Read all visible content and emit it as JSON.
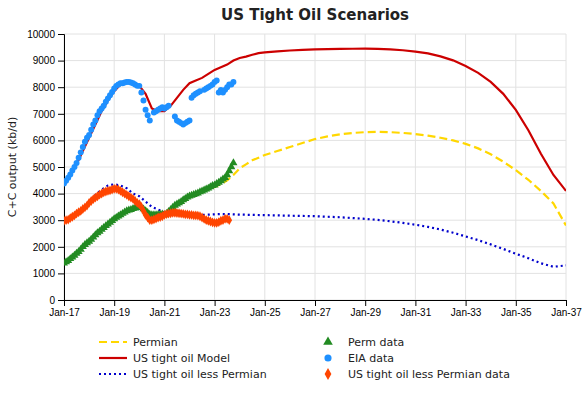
{
  "chart_data": {
    "type": "line",
    "title": "US Tight Oil Scenarios",
    "y_label": "C+C output (kb/d)",
    "xlim": [
      2017.0,
      2037.0
    ],
    "xticks": [
      {
        "value": 2017,
        "label": "Jan-17"
      },
      {
        "value": 2019,
        "label": "Jan-19"
      },
      {
        "value": 2021,
        "label": "Jan-21"
      },
      {
        "value": 2023,
        "label": "Jan-23"
      },
      {
        "value": 2025,
        "label": "Jan-25"
      },
      {
        "value": 2027,
        "label": "Jan-27"
      },
      {
        "value": 2029,
        "label": "Jan-29"
      },
      {
        "value": 2031,
        "label": "Jan-31"
      },
      {
        "value": 2033,
        "label": "Jan-33"
      },
      {
        "value": 2035,
        "label": "Jan-35"
      },
      {
        "value": 2037,
        "label": "Jan-37"
      }
    ],
    "ylim": [
      0,
      10000
    ],
    "yticks": [
      0,
      1000,
      2000,
      3000,
      4000,
      5000,
      6000,
      7000,
      8000,
      9000,
      10000
    ],
    "grid": true,
    "legend": "bottom",
    "series": [
      {
        "name": "Permian",
        "type": "line",
        "color": "#FFD700",
        "line_style": "dashed",
        "x": [
          2017.0,
          2017.25,
          2017.5,
          2017.75,
          2018.0,
          2018.25,
          2018.5,
          2018.75,
          2019.0,
          2019.25,
          2019.5,
          2019.75,
          2020.0,
          2020.25,
          2020.5,
          2020.75,
          2021.0,
          2021.25,
          2021.5,
          2021.75,
          2022.0,
          2022.25,
          2022.5,
          2022.75,
          2023.0,
          2023.25,
          2023.5,
          2023.75,
          2024.0,
          2024.25,
          2024.5,
          2024.75,
          2025.0,
          2025.5,
          2026.0,
          2026.5,
          2027.0,
          2027.5,
          2028.0,
          2028.5,
          2029.0,
          2029.5,
          2030.0,
          2030.5,
          2031.0,
          2031.5,
          2032.0,
          2032.5,
          2033.0,
          2033.5,
          2034.0,
          2034.5,
          2035.0,
          2035.5,
          2036.0,
          2036.5,
          2037.0
        ],
        "values": [
          1380,
          1550,
          1750,
          2000,
          2200,
          2450,
          2650,
          2850,
          3050,
          3200,
          3350,
          3450,
          3500,
          3450,
          3250,
          3100,
          3200,
          3350,
          3550,
          3700,
          3850,
          3950,
          4050,
          4150,
          4250,
          4350,
          4500,
          4700,
          4950,
          5100,
          5250,
          5350,
          5450,
          5600,
          5750,
          5900,
          6050,
          6150,
          6230,
          6280,
          6310,
          6320,
          6310,
          6280,
          6240,
          6180,
          6100,
          6000,
          5870,
          5700,
          5480,
          5200,
          4880,
          4520,
          4100,
          3630,
          2800
        ]
      },
      {
        "name": "US tight oil Model",
        "type": "line",
        "color": "#CC0000",
        "line_style": "solid",
        "x": [
          2017.0,
          2017.25,
          2017.5,
          2017.75,
          2018.0,
          2018.25,
          2018.5,
          2018.75,
          2019.0,
          2019.25,
          2019.5,
          2019.75,
          2020.0,
          2020.25,
          2020.5,
          2020.75,
          2021.0,
          2021.25,
          2021.5,
          2021.75,
          2022.0,
          2022.25,
          2022.5,
          2022.75,
          2023.0,
          2023.25,
          2023.5,
          2023.75,
          2024.0,
          2024.25,
          2024.5,
          2024.75,
          2025.0,
          2025.5,
          2026.0,
          2026.5,
          2027.0,
          2027.5,
          2028.0,
          2028.5,
          2029.0,
          2029.5,
          2030.0,
          2030.5,
          2031.0,
          2031.5,
          2032.0,
          2032.5,
          2033.0,
          2033.5,
          2034.0,
          2034.5,
          2035.0,
          2035.5,
          2036.0,
          2036.5,
          2037.0
        ],
        "values": [
          4380,
          4700,
          5100,
          5600,
          6100,
          6600,
          7100,
          7500,
          7850,
          8100,
          8200,
          8150,
          8050,
          7750,
          7200,
          7100,
          7100,
          7300,
          7600,
          7900,
          8150,
          8250,
          8350,
          8500,
          8650,
          8750,
          8850,
          9000,
          9100,
          9150,
          9220,
          9280,
          9310,
          9350,
          9380,
          9400,
          9420,
          9430,
          9440,
          9445,
          9450,
          9440,
          9420,
          9390,
          9340,
          9270,
          9160,
          9010,
          8800,
          8540,
          8200,
          7750,
          7150,
          6380,
          5500,
          4700,
          4100
        ]
      },
      {
        "name": "US tight oil less Permian",
        "type": "line",
        "color": "#0000CC",
        "line_style": "dotted",
        "x": [
          2017.0,
          2017.25,
          2017.5,
          2017.75,
          2018.0,
          2018.25,
          2018.5,
          2018.75,
          2019.0,
          2019.25,
          2019.5,
          2019.75,
          2020.0,
          2020.25,
          2020.5,
          2020.75,
          2021.0,
          2021.25,
          2021.5,
          2021.75,
          2022.0,
          2022.25,
          2022.5,
          2022.75,
          2023.0,
          2023.25,
          2023.5,
          2023.75,
          2024.0,
          2024.5,
          2025.0,
          2025.5,
          2026.0,
          2026.5,
          2027.0,
          2027.5,
          2028.0,
          2028.5,
          2029.0,
          2029.5,
          2030.0,
          2030.5,
          2031.0,
          2031.5,
          2032.0,
          2032.5,
          2033.0,
          2033.5,
          2034.0,
          2034.5,
          2035.0,
          2035.5,
          2036.0,
          2036.5,
          2037.0
        ],
        "values": [
          2980,
          3100,
          3250,
          3450,
          3700,
          3950,
          4150,
          4300,
          4350,
          4300,
          4200,
          4000,
          3900,
          3700,
          3500,
          3400,
          3300,
          3250,
          3220,
          3210,
          3200,
          3200,
          3200,
          3210,
          3220,
          3230,
          3230,
          3220,
          3210,
          3200,
          3190,
          3180,
          3170,
          3160,
          3150,
          3130,
          3110,
          3080,
          3050,
          3010,
          2960,
          2900,
          2830,
          2750,
          2650,
          2530,
          2390,
          2250,
          2090,
          1920,
          1740,
          1570,
          1380,
          1250,
          1300
        ]
      },
      {
        "name": "Perm data",
        "type": "scatter",
        "color": "#228B22",
        "marker": "triangle",
        "x": [
          2017.0,
          2017.083,
          2017.167,
          2017.25,
          2017.333,
          2017.417,
          2017.5,
          2017.583,
          2017.667,
          2017.75,
          2017.833,
          2017.917,
          2018.0,
          2018.083,
          2018.167,
          2018.25,
          2018.333,
          2018.417,
          2018.5,
          2018.583,
          2018.667,
          2018.75,
          2018.833,
          2018.917,
          2019.0,
          2019.083,
          2019.167,
          2019.25,
          2019.333,
          2019.417,
          2019.5,
          2019.583,
          2019.667,
          2019.75,
          2019.833,
          2019.917,
          2020.0,
          2020.083,
          2020.167,
          2020.25,
          2020.333,
          2020.417,
          2020.5,
          2020.583,
          2020.667,
          2020.75,
          2020.833,
          2020.917,
          2021.0,
          2021.083,
          2021.167,
          2021.25,
          2021.333,
          2021.417,
          2021.5,
          2021.583,
          2021.667,
          2021.75,
          2021.833,
          2021.917,
          2022.0,
          2022.083,
          2022.167,
          2022.25,
          2022.333,
          2022.417,
          2022.5,
          2022.583,
          2022.667,
          2022.75,
          2022.833,
          2022.917,
          2023.0,
          2023.083,
          2023.167,
          2023.25,
          2023.333,
          2023.417,
          2023.5,
          2023.583,
          2023.667,
          2023.75
        ],
        "values": [
          1380,
          1430,
          1480,
          1550,
          1610,
          1680,
          1750,
          1820,
          1900,
          2000,
          2080,
          2150,
          2200,
          2280,
          2360,
          2450,
          2520,
          2580,
          2650,
          2720,
          2790,
          2850,
          2920,
          2980,
          3050,
          3100,
          3150,
          3200,
          3250,
          3300,
          3350,
          3380,
          3400,
          3430,
          3450,
          3480,
          3500,
          3470,
          3420,
          3350,
          3280,
          3220,
          3200,
          3200,
          3200,
          3210,
          3220,
          3230,
          3200,
          3250,
          3320,
          3400,
          3480,
          3560,
          3600,
          3650,
          3700,
          3760,
          3810,
          3870,
          3900,
          3930,
          3960,
          3990,
          4020,
          4060,
          4090,
          4130,
          4170,
          4200,
          4250,
          4300,
          4320,
          4370,
          4420,
          4480,
          4540,
          4600,
          4700,
          4850,
          5000,
          5150
        ]
      },
      {
        "name": "EIA data",
        "type": "scatter",
        "color": "#1E90FF",
        "marker": "circle",
        "x": [
          2017.0,
          2017.083,
          2017.167,
          2017.25,
          2017.333,
          2017.417,
          2017.5,
          2017.583,
          2017.667,
          2017.75,
          2017.833,
          2017.917,
          2018.0,
          2018.083,
          2018.167,
          2018.25,
          2018.333,
          2018.417,
          2018.5,
          2018.583,
          2018.667,
          2018.75,
          2018.833,
          2018.917,
          2019.0,
          2019.083,
          2019.167,
          2019.25,
          2019.333,
          2019.417,
          2019.5,
          2019.583,
          2019.667,
          2019.75,
          2019.833,
          2019.917,
          2020.0,
          2020.083,
          2020.167,
          2020.25,
          2020.333,
          2020.417,
          2020.583,
          2020.667,
          2020.75,
          2020.833,
          2020.917,
          2021.0,
          2021.083,
          2021.167,
          2021.417,
          2021.5,
          2021.583,
          2021.667,
          2021.75,
          2021.833,
          2021.917,
          2022.0,
          2022.083,
          2022.167,
          2022.25,
          2022.333,
          2022.417,
          2022.583,
          2022.667,
          2022.75,
          2022.833,
          2022.917,
          2023.0,
          2023.083,
          2023.167,
          2023.25,
          2023.333,
          2023.417,
          2023.5,
          2023.583,
          2023.667,
          2023.75
        ],
        "values": [
          4380,
          4480,
          4600,
          4720,
          4870,
          5000,
          5150,
          5350,
          5550,
          5750,
          5950,
          6100,
          6200,
          6400,
          6600,
          6750,
          6950,
          7100,
          7200,
          7300,
          7450,
          7580,
          7700,
          7820,
          7950,
          8050,
          8100,
          8150,
          8150,
          8180,
          8200,
          8200,
          8180,
          8150,
          8100,
          8050,
          8050,
          7800,
          7500,
          7150,
          6950,
          6750,
          7050,
          7100,
          7150,
          7200,
          7250,
          7200,
          7250,
          7300,
          6900,
          6750,
          6700,
          6650,
          6600,
          6650,
          6700,
          6750,
          7600,
          7700,
          7750,
          7800,
          7850,
          7900,
          7950,
          8000,
          8050,
          8100,
          8200,
          8250,
          7800,
          7900,
          7800,
          7900,
          8000,
          8100,
          8100,
          8200
        ]
      },
      {
        "name": "US tight oil less Permian data",
        "type": "scatter",
        "color": "#FF4500",
        "marker": "diamond",
        "x": [
          2017.0,
          2017.083,
          2017.167,
          2017.25,
          2017.333,
          2017.417,
          2017.5,
          2017.583,
          2017.667,
          2017.75,
          2017.833,
          2017.917,
          2018.0,
          2018.083,
          2018.167,
          2018.25,
          2018.333,
          2018.417,
          2018.5,
          2018.583,
          2018.667,
          2018.75,
          2018.833,
          2018.917,
          2019.0,
          2019.083,
          2019.167,
          2019.25,
          2019.333,
          2019.417,
          2019.5,
          2019.583,
          2019.667,
          2019.75,
          2019.833,
          2019.917,
          2020.0,
          2020.083,
          2020.167,
          2020.25,
          2020.333,
          2020.417,
          2020.5,
          2020.583,
          2020.667,
          2020.75,
          2020.833,
          2020.917,
          2021.0,
          2021.083,
          2021.167,
          2021.25,
          2021.333,
          2021.417,
          2021.5,
          2021.583,
          2021.667,
          2021.75,
          2021.833,
          2021.917,
          2022.0,
          2022.083,
          2022.167,
          2022.25,
          2022.333,
          2022.417,
          2022.5,
          2022.583,
          2022.667,
          2022.75,
          2022.833,
          2022.917,
          2023.0,
          2023.083,
          2023.167,
          2023.25,
          2023.333,
          2023.417,
          2023.5,
          2023.583
        ],
        "values": [
          2980,
          3000,
          3020,
          3080,
          3130,
          3180,
          3250,
          3300,
          3350,
          3420,
          3480,
          3550,
          3650,
          3720,
          3790,
          3850,
          3900,
          3960,
          4000,
          4050,
          4080,
          4100,
          4120,
          4150,
          4180,
          4180,
          4150,
          4100,
          4050,
          4000,
          3950,
          3900,
          3850,
          3800,
          3720,
          3650,
          3600,
          3500,
          3350,
          3200,
          3100,
          3000,
          3000,
          3030,
          3060,
          3100,
          3120,
          3150,
          3200,
          3230,
          3250,
          3260,
          3280,
          3280,
          3270,
          3260,
          3250,
          3240,
          3220,
          3220,
          3200,
          3200,
          3180,
          3180,
          3170,
          3150,
          3100,
          3050,
          3000,
          2980,
          2950,
          2920,
          2900,
          2900,
          2930,
          2980,
          3000,
          3050,
          3050,
          3000
        ]
      }
    ]
  }
}
